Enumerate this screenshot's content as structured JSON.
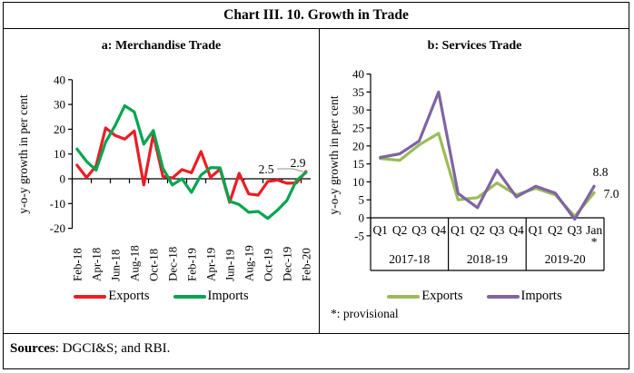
{
  "window": {
    "title": "Chart III. 10. Growth in Trade"
  },
  "footer": {
    "sources_label": "Sources",
    "sources_rest": ": DGCI&S; and RBI."
  },
  "chart_data": [
    {
      "id": "merchandise-trade",
      "type": "line",
      "title": "a: Merchandise Trade",
      "ylabel": "y-o-y growth in per cent",
      "ylim": [
        -20,
        40
      ],
      "grid": false,
      "legend_position": "bottom",
      "y_ticks": [
        40,
        30,
        20,
        10,
        0,
        -10,
        -20
      ],
      "x": [
        "Feb-18",
        "Mar-18",
        "Apr-18",
        "May-18",
        "Jun-18",
        "Jul-18",
        "Aug-18",
        "Sep-18",
        "Oct-18",
        "Nov-18",
        "Dec-18",
        "Jan-19",
        "Feb-19",
        "Mar-19",
        "Apr-19",
        "May-19",
        "Jun-19",
        "Jul-19",
        "Aug-19",
        "Sep-19",
        "Oct-19",
        "Nov-19",
        "Dec-19",
        "Jan-20",
        "Feb-20"
      ],
      "x_tick_labels": [
        "Feb-18",
        "Apr-18",
        "Jun-18",
        "Aug-18",
        "Oct-18",
        "Dec-18",
        "Feb-19",
        "Apr-19",
        "Jun-19",
        "Aug-19",
        "Oct-19",
        "Dec-19",
        "Feb-20"
      ],
      "series": [
        {
          "name": "Exports",
          "color": "#ed1c24",
          "values": [
            5.5,
            0.5,
            5.2,
            20.5,
            17.5,
            16.0,
            19.3,
            -2.5,
            17.9,
            1.0,
            0.3,
            3.7,
            2.4,
            11.0,
            0.6,
            3.9,
            -9.5,
            2.2,
            -6.1,
            -6.6,
            -1.1,
            -0.5,
            -1.8,
            -1.7,
            2.9
          ]
        },
        {
          "name": "Imports",
          "color": "#00a550",
          "values": [
            12.0,
            7.0,
            3.5,
            14.8,
            21.5,
            29.5,
            27.0,
            14.0,
            19.5,
            4.3,
            -2.5,
            0.0,
            -5.5,
            1.5,
            4.5,
            4.4,
            -9.1,
            -10.4,
            -13.5,
            -13.2,
            -16.0,
            -12.7,
            -8.8,
            -0.7,
            2.5
          ]
        }
      ],
      "annotations": [
        {
          "text": "2.5",
          "series": "Imports",
          "color": "#5e8d63"
        },
        {
          "text": "2.9",
          "series": "Exports",
          "color": "#ed1c24"
        }
      ]
    },
    {
      "id": "services-trade",
      "type": "line",
      "title": "b: Services Trade",
      "ylabel": "y-o-y  growth in per cent",
      "ylim": [
        -5,
        40
      ],
      "grid": false,
      "legend_position": "bottom",
      "y_ticks": [
        40,
        35,
        30,
        25,
        20,
        15,
        10,
        5,
        0,
        -5
      ],
      "x": [
        "Q1",
        "Q2",
        "Q3",
        "Q4",
        "Q1",
        "Q2",
        "Q3",
        "Q4",
        "Q1",
        "Q2",
        "Q3",
        "Jan"
      ],
      "last_label_flag": "*",
      "x_groups": [
        {
          "label": "2017-18",
          "span": 4
        },
        {
          "label": "2018-19",
          "span": 4
        },
        {
          "label": "2019-20",
          "span": 4
        }
      ],
      "series": [
        {
          "name": "Exports",
          "color": "#9bbb59",
          "values": [
            16.5,
            16.0,
            20.3,
            23.5,
            5.0,
            5.6,
            9.7,
            6.4,
            8.2,
            6.4,
            0.4,
            7.0
          ]
        },
        {
          "name": "Imports",
          "color": "#8064a2",
          "values": [
            16.8,
            17.8,
            21.4,
            35.0,
            6.8,
            2.8,
            13.3,
            5.8,
            8.8,
            6.9,
            -0.4,
            8.8
          ]
        }
      ],
      "annotations": [
        {
          "text": "8.8",
          "series": "Imports",
          "color": "#000000"
        },
        {
          "text": "7.0",
          "series": "Exports",
          "color": "#000000"
        }
      ],
      "note": "*: provisional"
    }
  ]
}
